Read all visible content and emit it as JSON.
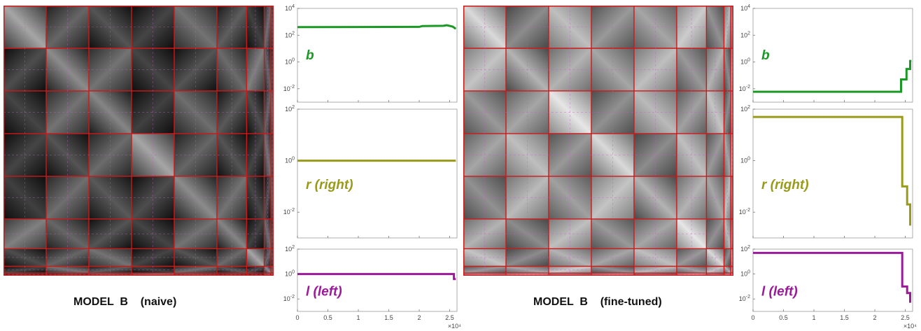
{
  "panels": [
    {
      "caption": "MODEL  B    (naive)",
      "chart_data": [
        {
          "type": "line",
          "name_label": "b",
          "color": "#1a9a24",
          "yscale": "log",
          "ylim_exp": [
            -3,
            4
          ],
          "ytick_exps": [
            -2,
            0,
            2,
            4
          ],
          "x": [
            0,
            2.0,
            2.05,
            2.4,
            2.45,
            2.55,
            2.6
          ],
          "y": [
            400,
            420,
            480,
            500,
            560,
            440,
            300
          ]
        },
        {
          "type": "line",
          "name_label": "r   (right)",
          "color": "#9a9a1a",
          "yscale": "log",
          "ylim_exp": [
            -3,
            2
          ],
          "ytick_exps": [
            -2,
            0,
            2
          ],
          "x": [
            0,
            2.6
          ],
          "y": [
            1,
            1
          ]
        },
        {
          "type": "line",
          "name_label": "l   (left)",
          "color": "#9a1a9a",
          "yscale": "log",
          "ylim_exp": [
            -3,
            2
          ],
          "ytick_exps": [
            -2,
            0,
            2
          ],
          "x": [
            0,
            2.57,
            2.57,
            2.6
          ],
          "y": [
            1,
            1,
            0.4,
            0.4
          ]
        }
      ],
      "xticks": [
        "0",
        "0.5",
        "1",
        "1.5",
        "2",
        "2.5"
      ],
      "xtick_vals": [
        0,
        0.5,
        1,
        1.5,
        2,
        2.5
      ],
      "x_multiplier": "×10⁴",
      "matrix_blocks": [
        0.35,
        0.25,
        0.18,
        0.12,
        0.3,
        0.22,
        0.1,
        0.28,
        0.2,
        0.15,
        0.25,
        0.3,
        0.12,
        0.18,
        0.27
      ]
    },
    {
      "caption": "MODEL  B    (fine-tuned)",
      "chart_data": [
        {
          "type": "line",
          "name_label": "b",
          "color": "#1a9a24",
          "yscale": "log",
          "ylim_exp": [
            -3,
            4
          ],
          "ytick_exps": [
            -2,
            0,
            2,
            4
          ],
          "x": [
            0,
            2.43,
            2.43,
            2.52,
            2.52,
            2.58,
            2.58,
            2.6
          ],
          "y": [
            0.006,
            0.006,
            0.05,
            0.05,
            0.3,
            0.3,
            1.2,
            1.2
          ]
        },
        {
          "type": "line",
          "name_label": "r   (right)",
          "color": "#9a9a1a",
          "yscale": "log",
          "ylim_exp": [
            -3,
            2
          ],
          "ytick_exps": [
            -2,
            0,
            2
          ],
          "x": [
            0,
            2.45,
            2.45,
            2.53,
            2.53,
            2.58,
            2.58
          ],
          "y": [
            50,
            50,
            0.1,
            0.1,
            0.02,
            0.02,
            0.003
          ]
        },
        {
          "type": "line",
          "name_label": "l   (left)",
          "color": "#9a1a9a",
          "yscale": "log",
          "ylim_exp": [
            -3,
            2
          ],
          "ytick_exps": [
            -2,
            0,
            2
          ],
          "x": [
            0,
            2.45,
            2.45,
            2.53,
            2.53,
            2.58,
            2.58
          ],
          "y": [
            50,
            50,
            0.1,
            0.1,
            0.03,
            0.03,
            0.005
          ]
        }
      ],
      "xticks": [
        "0",
        "0.5",
        "1",
        "1.5",
        "2",
        "2.5"
      ],
      "xtick_vals": [
        0,
        0.5,
        1,
        1.5,
        2,
        2.5
      ],
      "x_multiplier": "×10⁴",
      "matrix_blocks": [
        0.55,
        0.4,
        0.6,
        0.45,
        0.5,
        0.65,
        0.42,
        0.58,
        0.48,
        0.62,
        0.4,
        0.55,
        0.5,
        0.6,
        0.45
      ]
    }
  ]
}
